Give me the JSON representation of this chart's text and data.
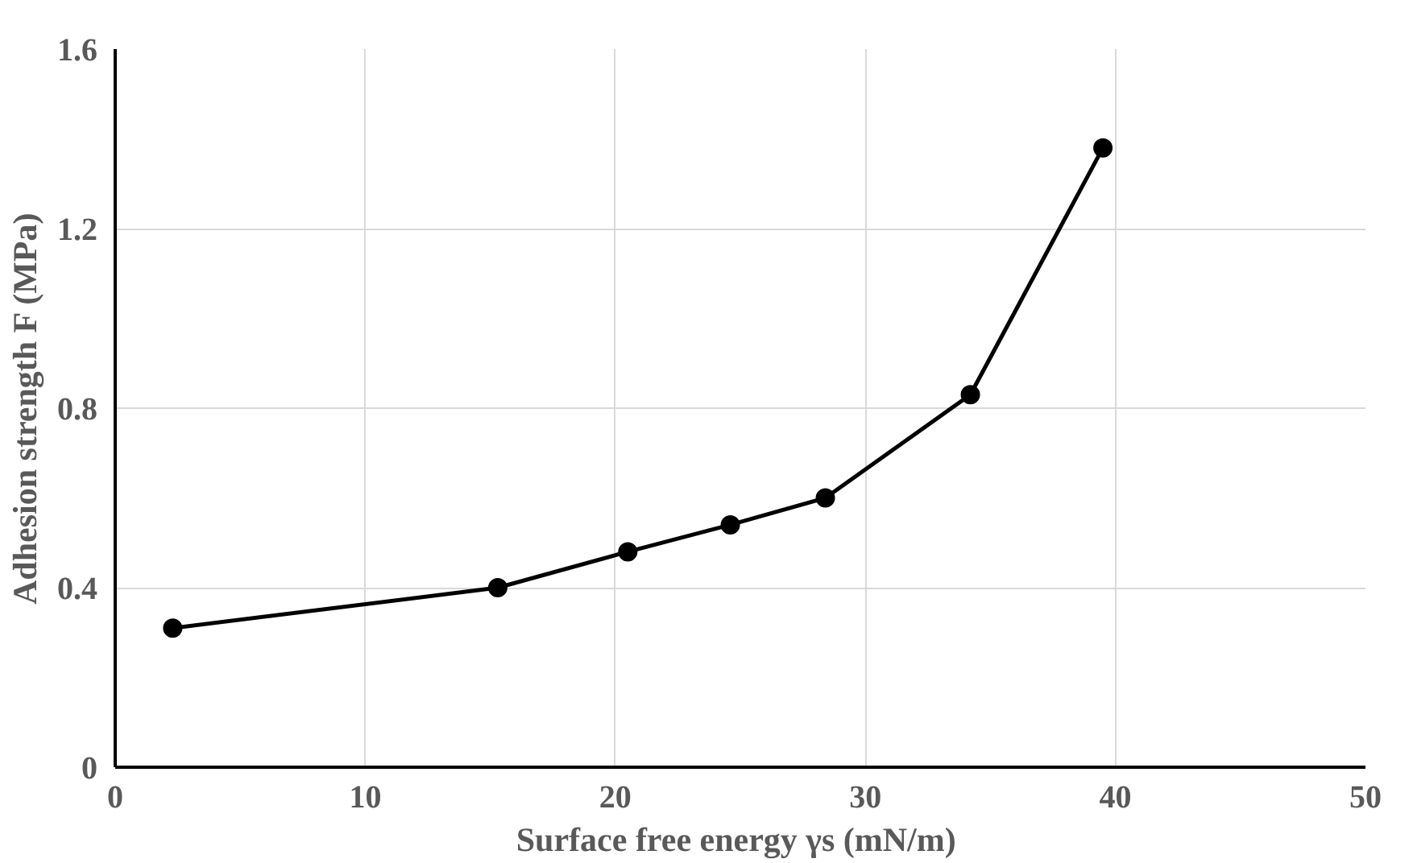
{
  "chart_data": {
    "type": "line",
    "xlabel": "Surface free energy γs  (mN/m)",
    "ylabel": "Adhesion strength F (MPa)",
    "x": [
      2.3,
      15.3,
      20.5,
      24.6,
      28.4,
      34.2,
      39.5
    ],
    "series": [
      {
        "color": "#000000",
        "values": [
          0.31,
          0.4,
          0.48,
          0.54,
          0.6,
          0.83,
          1.38
        ]
      }
    ],
    "xlim": [
      0,
      50
    ],
    "ylim": [
      0,
      1.6
    ],
    "xticks": [
      0,
      10,
      20,
      30,
      40,
      50
    ],
    "yticks": [
      0,
      0.4,
      0.8,
      1.2,
      1.6
    ],
    "grid": true,
    "marker": "circle",
    "line_style": "solid"
  }
}
